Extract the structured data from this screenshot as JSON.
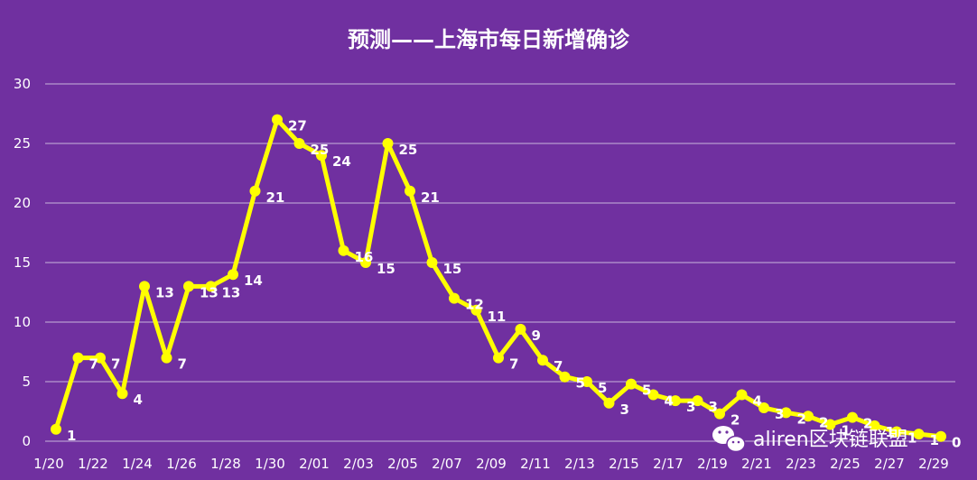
{
  "chart_data": {
    "type": "line",
    "title": "预测——上海市每日新增确诊",
    "xlabel": "",
    "ylabel": "",
    "ylim": [
      0,
      30
    ],
    "yticks": [
      0,
      5,
      10,
      15,
      20,
      25,
      30
    ],
    "grid": true,
    "legend": "none",
    "line_color": "#FFFF00",
    "background_color": "#7030A0",
    "x": [
      "1/20",
      "1/21",
      "1/22",
      "1/23",
      "1/24",
      "1/25",
      "1/26",
      "1/27",
      "1/28",
      "1/29",
      "1/30",
      "1/31",
      "2/01",
      "2/02",
      "2/03",
      "2/04",
      "2/05",
      "2/06",
      "2/07",
      "2/08",
      "2/09",
      "2/10",
      "2/11",
      "2/12",
      "2/13",
      "2/14",
      "2/15",
      "2/16",
      "2/17",
      "2/18",
      "2/19",
      "2/20",
      "2/21",
      "2/22",
      "2/23",
      "2/24",
      "2/25",
      "2/26",
      "2/27",
      "2/28",
      "2/29"
    ],
    "x_tick_labels": [
      "1/20",
      "1/22",
      "1/24",
      "1/26",
      "1/28",
      "1/30",
      "2/01",
      "2/03",
      "2/05",
      "2/07",
      "2/09",
      "2/11",
      "2/13",
      "2/15",
      "2/17",
      "2/19",
      "2/21",
      "2/23",
      "2/25",
      "2/27",
      "2/29"
    ],
    "values": [
      1,
      7,
      7,
      4,
      13,
      7,
      13,
      13,
      14,
      21,
      27,
      25,
      24,
      16,
      15,
      25,
      21,
      15,
      12,
      11,
      7,
      9.4,
      6.8,
      5.4,
      5,
      3.2,
      4.8,
      3.9,
      3.4,
      3.4,
      2.3,
      3.9,
      2.8,
      2.4,
      2.1,
      1.4,
      2,
      1.3,
      0.8,
      0.6,
      0.4
    ],
    "data_labels": [
      "1",
      "7",
      "7",
      "4",
      "13",
      "7",
      "13",
      "13",
      "14",
      "21",
      "27",
      "25",
      "24",
      "16",
      "15",
      "25",
      "21",
      "15",
      "12",
      "11",
      "7",
      "9",
      "7",
      "5",
      "5",
      "3",
      "5",
      "4",
      "3",
      "3",
      "2",
      "4",
      "3",
      "2",
      "2",
      "1",
      "2",
      "1",
      "1",
      "1",
      "0"
    ]
  },
  "watermark": {
    "icon": "wechat-icon",
    "text": "aliren区块链联盟"
  }
}
